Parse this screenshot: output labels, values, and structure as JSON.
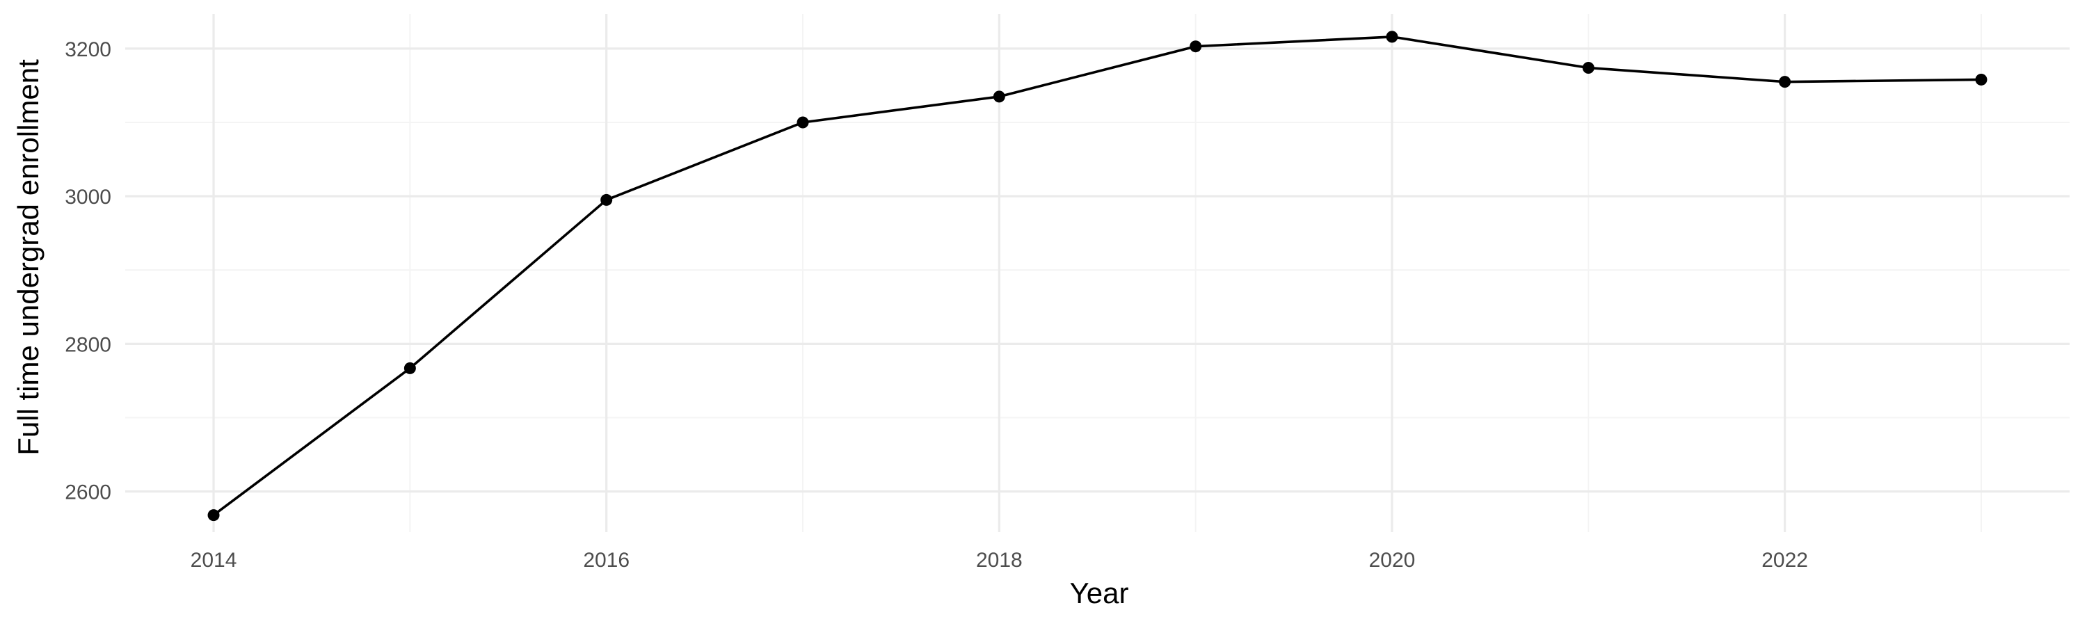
{
  "chart_data": {
    "type": "line",
    "title": "",
    "xlabel": "Year",
    "ylabel": "Full time undergrad enrollment",
    "x": [
      2014,
      2015,
      2016,
      2017,
      2018,
      2019,
      2020,
      2021,
      2022,
      2023
    ],
    "series": [
      {
        "values": [
          2568,
          2767,
          2995,
          3100,
          3135,
          3203,
          3216,
          3174,
          3155,
          3158
        ]
      }
    ],
    "xlim": [
      2013.55,
      2023.45
    ],
    "ylim": [
      2545,
      3247
    ],
    "x_ticks": [
      2014,
      2016,
      2018,
      2020,
      2022
    ],
    "y_ticks": [
      2600,
      2800,
      3000,
      3200
    ],
    "x_tick_labels": [
      "2014",
      "2016",
      "2018",
      "2020",
      "2022"
    ],
    "y_tick_labels": [
      "2600",
      "2800",
      "3000",
      "3200"
    ],
    "grid": true,
    "legend": "none",
    "colors": {
      "line": "#000000",
      "grid": "#ebebeb",
      "tick_text": "#4d4d4d"
    }
  }
}
